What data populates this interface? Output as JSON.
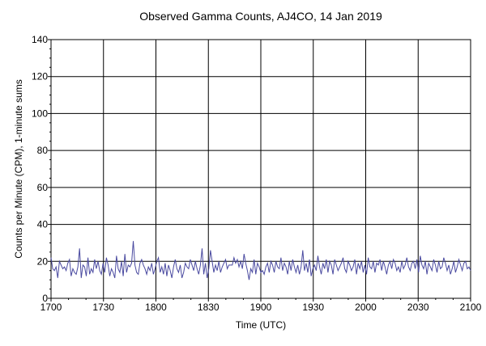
{
  "chart_data": {
    "type": "line",
    "title": "Observed Gamma Counts, AJ4CO, 14 Jan 2019",
    "xlabel": "Time (UTC)",
    "ylabel": "Counts per Minute (CPM), 1-minute sums",
    "x_tick_labels": [
      "1700",
      "1730",
      "1800",
      "1830",
      "1900",
      "1930",
      "2000",
      "2030",
      "2100"
    ],
    "y_ticks": [
      0,
      20,
      40,
      60,
      80,
      100,
      120,
      140
    ],
    "xlim_minutes": [
      0,
      240
    ],
    "ylim": [
      0,
      140
    ],
    "grid": true,
    "line_color": "#4a4aa0",
    "series": [
      {
        "values": [
          22,
          16,
          15,
          17,
          11,
          20,
          18,
          16,
          17,
          15,
          19,
          21,
          12,
          16,
          14,
          13,
          17,
          27,
          11,
          18,
          17,
          12,
          22,
          13,
          16,
          14,
          21,
          16,
          20,
          15,
          13,
          19,
          14,
          22,
          18,
          12,
          16,
          14,
          11,
          23,
          16,
          14,
          20,
          12,
          24,
          14,
          18,
          17,
          19,
          31,
          18,
          14,
          13,
          19,
          21,
          18,
          16,
          13,
          17,
          15,
          19,
          13,
          16,
          20,
          22,
          14,
          17,
          13,
          19,
          12,
          18,
          15,
          11,
          17,
          21,
          16,
          14,
          18,
          11,
          14,
          19,
          17,
          16,
          21,
          18,
          15,
          20,
          16,
          13,
          18,
          27,
          13,
          19,
          11,
          16,
          26,
          20,
          14,
          18,
          15,
          20,
          14,
          17,
          19,
          21,
          16,
          18,
          18,
          18,
          22,
          19,
          21,
          17,
          20,
          16,
          24,
          19,
          15,
          10,
          16,
          14,
          21,
          13,
          19,
          17,
          14,
          15,
          13,
          17,
          19,
          14,
          20,
          18,
          14,
          20,
          17,
          16,
          22,
          15,
          19,
          17,
          13,
          20,
          15,
          21,
          17,
          14,
          18,
          13,
          17,
          26,
          15,
          19,
          14,
          21,
          12,
          16,
          18,
          15,
          23,
          17,
          13,
          19,
          16,
          21,
          14,
          20,
          18,
          13,
          21,
          18,
          15,
          17,
          19,
          22,
          16,
          14,
          20,
          18,
          15,
          17,
          21,
          13,
          19,
          16,
          20,
          14,
          18,
          13,
          22,
          17,
          16,
          20,
          14,
          19,
          18,
          21,
          15,
          20,
          17,
          13,
          18,
          20,
          16,
          21,
          19,
          15,
          17,
          14,
          20,
          16,
          18,
          22,
          17,
          15,
          19,
          20,
          16,
          21,
          14,
          23,
          18,
          16,
          20,
          13,
          19,
          17,
          15,
          21,
          18,
          14,
          20,
          16,
          17,
          22,
          19,
          15,
          18,
          13,
          16,
          20,
          14,
          17,
          21,
          18,
          15,
          19,
          20,
          16,
          17,
          15
        ]
      }
    ]
  }
}
